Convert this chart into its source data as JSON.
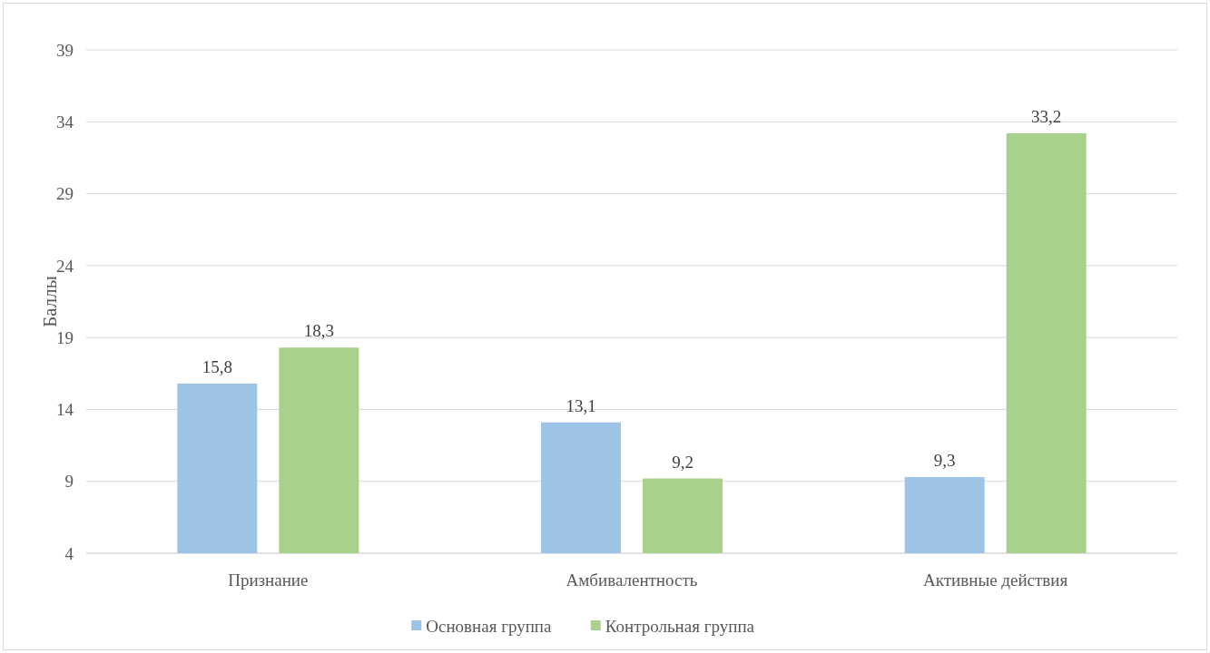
{
  "chart_data": {
    "type": "bar",
    "ylabel": "Баллы",
    "categories": [
      "Признание",
      "Амбивалентность",
      "Активные действия"
    ],
    "series": [
      {
        "name": "Основная группа",
        "color": "#9dc3e6",
        "values": [
          15.8,
          13.1,
          9.3
        ],
        "value_labels": [
          "15,8",
          "13,1",
          "9,3"
        ]
      },
      {
        "name": "Контрольная группа",
        "color": "#a9d18e",
        "values": [
          18.3,
          9.2,
          33.2
        ],
        "value_labels": [
          "18,3",
          "9,2",
          "33,2"
        ]
      }
    ],
    "ylim": [
      4,
      39
    ],
    "yticks": [
      4,
      9,
      14,
      19,
      24,
      29,
      34,
      39
    ],
    "grid": "y",
    "legend": "bottom"
  }
}
